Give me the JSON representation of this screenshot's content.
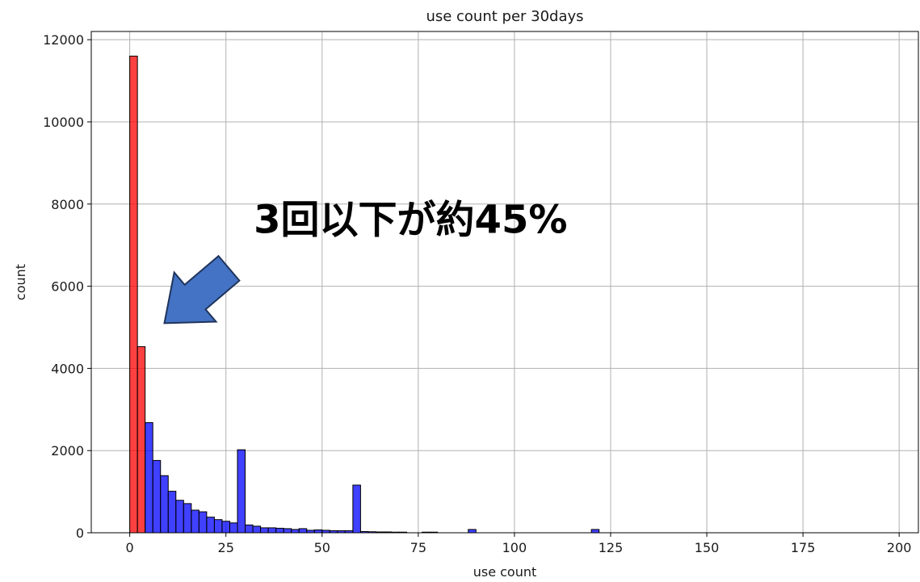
{
  "chart_data": {
    "type": "bar",
    "title": "use count per 30days",
    "xlabel": "use count",
    "ylabel": "count",
    "xlim": [
      -10,
      205
    ],
    "ylim": [
      0,
      12200
    ],
    "x_ticks": [
      0,
      25,
      50,
      75,
      100,
      125,
      150,
      175,
      200
    ],
    "y_ticks": [
      0,
      2000,
      4000,
      6000,
      8000,
      10000,
      12000
    ],
    "grid": true,
    "bin_width": 2,
    "series": [
      {
        "color": "#ff0000",
        "bins": [
          {
            "x0": 0,
            "x1": 2,
            "value": 11600
          },
          {
            "x0": 2,
            "x1": 4,
            "value": 4530
          }
        ]
      },
      {
        "color": "#0000ff",
        "bins": [
          {
            "x0": 4,
            "x1": 6,
            "value": 2680
          },
          {
            "x0": 6,
            "x1": 8,
            "value": 1760
          },
          {
            "x0": 8,
            "x1": 10,
            "value": 1390
          },
          {
            "x0": 10,
            "x1": 12,
            "value": 1010
          },
          {
            "x0": 12,
            "x1": 14,
            "value": 790
          },
          {
            "x0": 14,
            "x1": 16,
            "value": 710
          },
          {
            "x0": 16,
            "x1": 18,
            "value": 550
          },
          {
            "x0": 18,
            "x1": 20,
            "value": 510
          },
          {
            "x0": 20,
            "x1": 22,
            "value": 380
          },
          {
            "x0": 22,
            "x1": 24,
            "value": 320
          },
          {
            "x0": 24,
            "x1": 26,
            "value": 280
          },
          {
            "x0": 26,
            "x1": 28,
            "value": 240
          },
          {
            "x0": 28,
            "x1": 30,
            "value": 2020
          },
          {
            "x0": 30,
            "x1": 32,
            "value": 190
          },
          {
            "x0": 32,
            "x1": 34,
            "value": 160
          },
          {
            "x0": 34,
            "x1": 36,
            "value": 120
          },
          {
            "x0": 36,
            "x1": 38,
            "value": 120
          },
          {
            "x0": 38,
            "x1": 40,
            "value": 110
          },
          {
            "x0": 40,
            "x1": 42,
            "value": 100
          },
          {
            "x0": 42,
            "x1": 44,
            "value": 80
          },
          {
            "x0": 44,
            "x1": 46,
            "value": 100
          },
          {
            "x0": 46,
            "x1": 48,
            "value": 60
          },
          {
            "x0": 48,
            "x1": 50,
            "value": 70
          },
          {
            "x0": 50,
            "x1": 52,
            "value": 60
          },
          {
            "x0": 52,
            "x1": 54,
            "value": 50
          },
          {
            "x0": 54,
            "x1": 56,
            "value": 50
          },
          {
            "x0": 56,
            "x1": 58,
            "value": 50
          },
          {
            "x0": 58,
            "x1": 60,
            "value": 1160
          },
          {
            "x0": 60,
            "x1": 62,
            "value": 30
          },
          {
            "x0": 62,
            "x1": 64,
            "value": 25
          },
          {
            "x0": 64,
            "x1": 66,
            "value": 20
          },
          {
            "x0": 66,
            "x1": 68,
            "value": 20
          },
          {
            "x0": 68,
            "x1": 70,
            "value": 15
          },
          {
            "x0": 70,
            "x1": 72,
            "value": 15
          },
          {
            "x0": 76,
            "x1": 78,
            "value": 15
          },
          {
            "x0": 78,
            "x1": 80,
            "value": 15
          },
          {
            "x0": 88,
            "x1": 90,
            "value": 80
          },
          {
            "x0": 120,
            "x1": 122,
            "value": 80
          }
        ]
      }
    ],
    "annotations": [
      {
        "text": "3回以下が約45%",
        "x": 73,
        "y": 7300,
        "arrow_target": [
          9,
          5100
        ],
        "arrow_color": "#4472c4"
      }
    ]
  }
}
